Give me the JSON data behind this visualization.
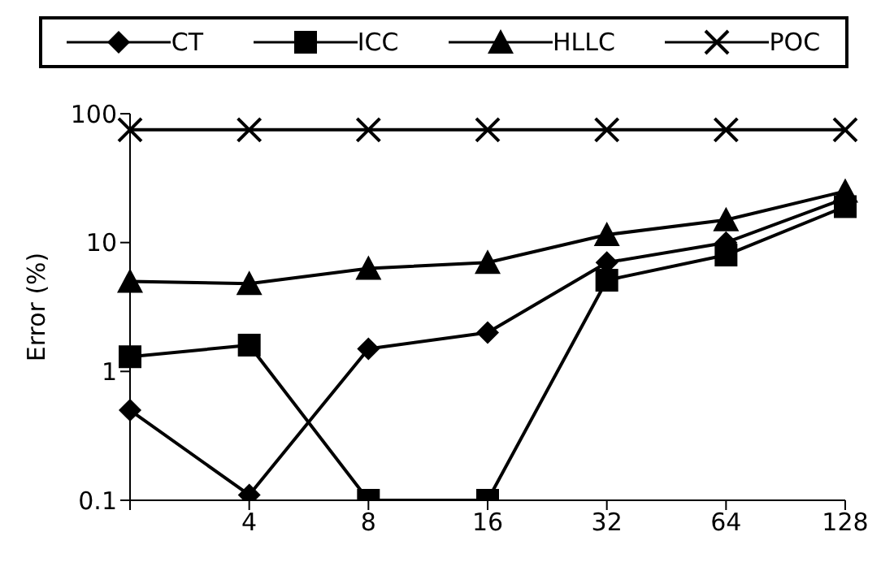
{
  "chart_data": {
    "type": "line",
    "ylabel": "Error (%)",
    "categories": [
      null,
      "4",
      "8",
      "16",
      "32",
      "64",
      "128"
    ],
    "log": "y",
    "ylim": [
      0.1,
      100
    ],
    "yticks": [
      0.1,
      1,
      10,
      100
    ],
    "legend": "top",
    "line_style": "solid",
    "series": [
      {
        "name": "CT",
        "color": "#000000",
        "marker": "diamond",
        "values": [
          0.5,
          0.11,
          1.5,
          2.0,
          7,
          10,
          22
        ]
      },
      {
        "name": "ICC",
        "color": "#000000",
        "marker": "square",
        "values": [
          1.3,
          1.6,
          0.1,
          0.1,
          5.1,
          8,
          19
        ]
      },
      {
        "name": "HLLC",
        "color": "#000000",
        "marker": "triangle",
        "values": [
          5.0,
          4.8,
          6.3,
          7,
          11.5,
          15,
          25
        ]
      },
      {
        "name": "POC",
        "color": "#000000",
        "marker": "cross",
        "values": [
          75,
          75,
          75,
          75,
          75,
          75,
          75
        ]
      }
    ]
  }
}
